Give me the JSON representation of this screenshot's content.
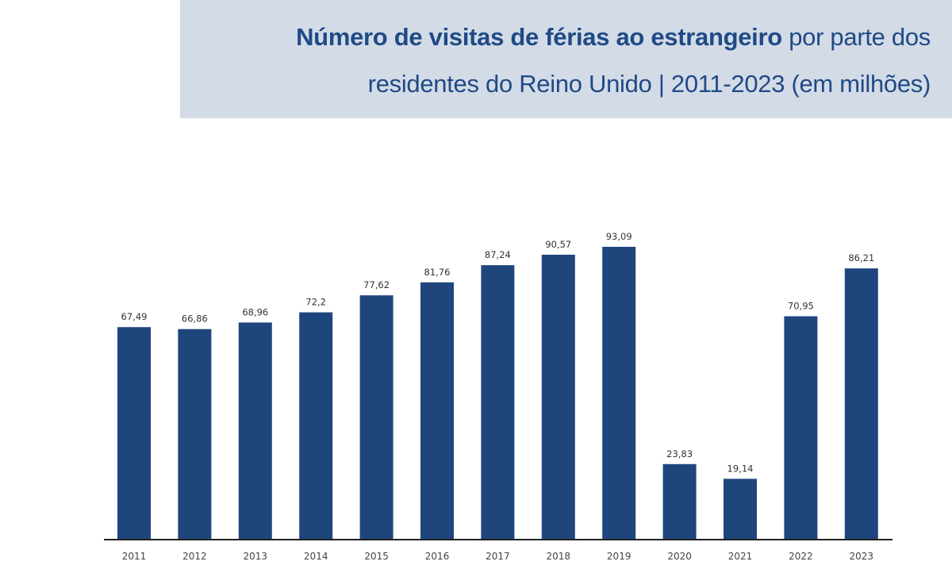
{
  "title": {
    "bold": "Número de visitas de férias ao estrangeiro",
    "rest_line1": " por parte dos",
    "line2": "residentes do Reino Unido | 2011-2023 (em milhões)"
  },
  "colors": {
    "bar": "#1f467c",
    "title_bg": "#d3dbe7",
    "title_text": "#1f4a85",
    "axis": "#222222"
  },
  "chart_data": {
    "type": "bar",
    "title": "Número de visitas de férias ao estrangeiro por parte dos residentes do Reino Unido | 2011-2023 (em milhões)",
    "xlabel": "",
    "ylabel": "",
    "categories": [
      "2011",
      "2012",
      "2013",
      "2014",
      "2015",
      "2016",
      "2017",
      "2018",
      "2019",
      "2020",
      "2021",
      "2022",
      "2023"
    ],
    "values": [
      67.49,
      66.86,
      68.96,
      72.2,
      77.62,
      81.76,
      87.24,
      90.57,
      93.09,
      23.83,
      19.14,
      70.95,
      86.21
    ],
    "value_labels": [
      "67,49",
      "66,86",
      "68,96",
      "72,2",
      "77,62",
      "81,76",
      "87,24",
      "90,57",
      "93,09",
      "23,83",
      "19,14",
      "70,95",
      "86,21"
    ],
    "ylim": [
      0,
      93.09
    ],
    "grid": false,
    "legend": "none"
  }
}
